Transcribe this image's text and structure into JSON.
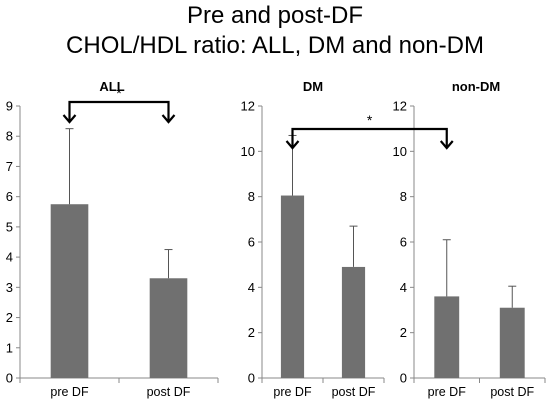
{
  "title_line1": "Pre and post-DF",
  "title_line2": "CHOL/HDL ratio: ALL, DM and non-DM",
  "chart_data": [
    {
      "type": "bar",
      "title": "ALL",
      "categories": [
        "pre DF",
        "post DF"
      ],
      "values": [
        5.75,
        3.3
      ],
      "error_plus": [
        2.5,
        0.95
      ],
      "ylim": [
        0,
        9
      ],
      "yticks": [
        0,
        1,
        2,
        3,
        4,
        5,
        6,
        7,
        8,
        9
      ],
      "significance": {
        "label": "*",
        "between": [
          "pre DF",
          "post DF"
        ]
      },
      "bar_color": "#707070"
    },
    {
      "type": "bar",
      "title": "DM",
      "categories": [
        "pre DF",
        "post DF"
      ],
      "values": [
        8.05,
        4.9
      ],
      "error_plus": [
        2.65,
        1.8
      ],
      "ylim": [
        0,
        12
      ],
      "yticks": [
        0,
        2,
        4,
        6,
        8,
        10,
        12
      ],
      "bar_color": "#707070"
    },
    {
      "type": "bar",
      "title": "non-DM",
      "categories": [
        "pre DF",
        "post DF"
      ],
      "values": [
        3.6,
        3.1
      ],
      "error_plus": [
        2.5,
        0.95
      ],
      "ylim": [
        0,
        12
      ],
      "yticks": [
        0,
        2,
        4,
        6,
        8,
        10,
        12
      ],
      "bar_color": "#707070"
    }
  ],
  "cross_significance": {
    "label": "*",
    "between": [
      "DM pre DF",
      "non-DM pre DF"
    ]
  }
}
